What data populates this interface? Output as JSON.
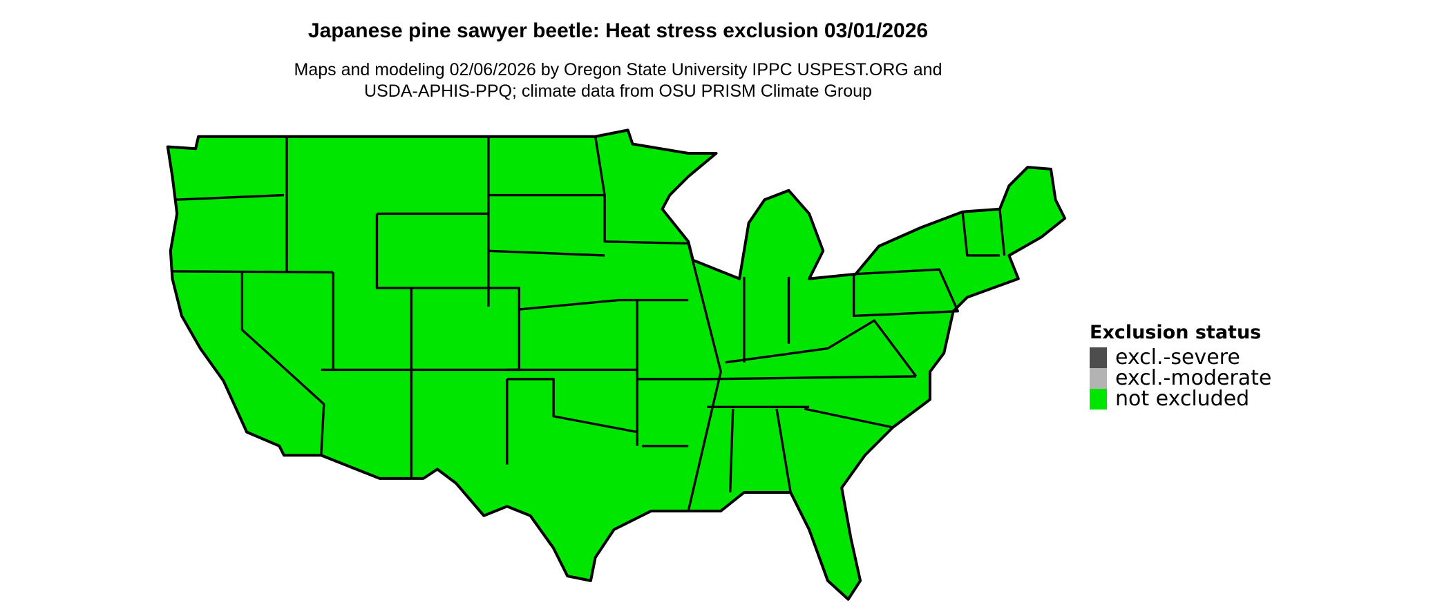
{
  "header": {
    "title": "Japanese pine sawyer beetle: Heat stress exclusion 03/01/2026",
    "subtitle_line1": "Maps and modeling 02/06/2026 by Oregon State University IPPC USPEST.ORG and",
    "subtitle_line2": "USDA-APHIS-PPQ; climate data from OSU PRISM Climate Group"
  },
  "map": {
    "region": "contiguous United States",
    "fill_color": "#00e600",
    "border_color": "#000000"
  },
  "legend": {
    "title": "Exclusion status",
    "items": [
      {
        "label": "excl.-severe",
        "color": "#4d4d4d"
      },
      {
        "label": "excl.-moderate",
        "color": "#b3b3b3"
      },
      {
        "label": "not excluded",
        "color": "#00e600"
      }
    ]
  }
}
